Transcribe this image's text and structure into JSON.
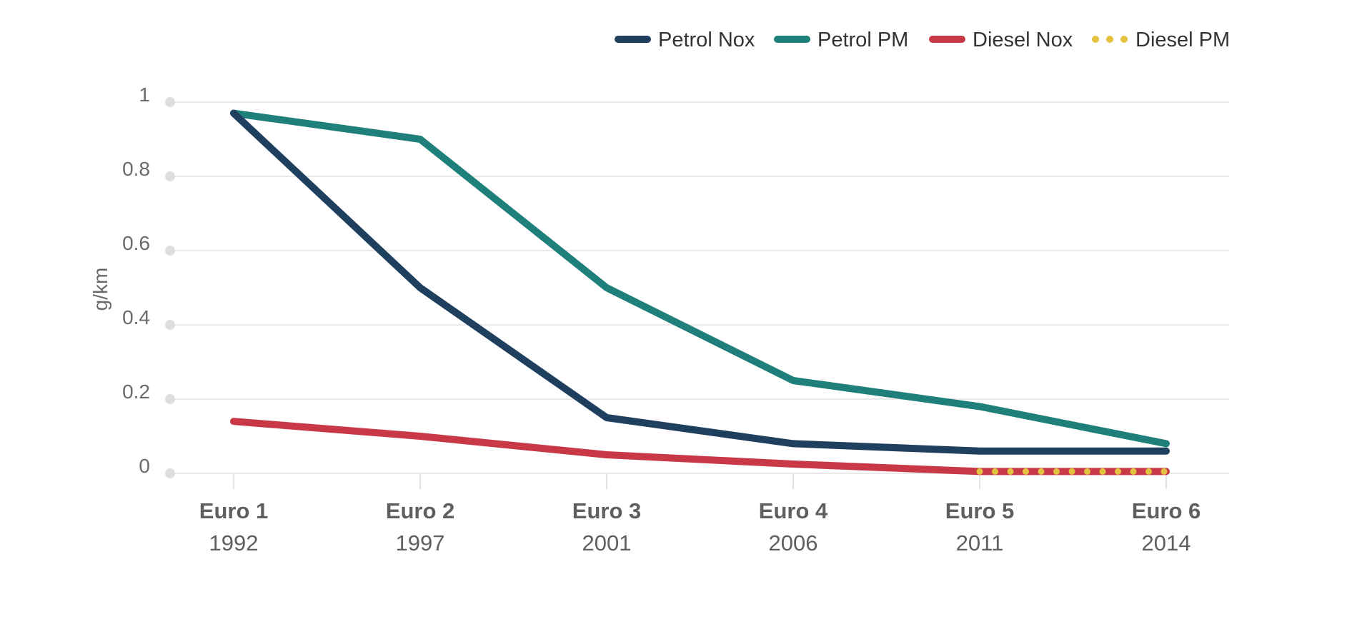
{
  "chart_data": {
    "type": "line",
    "ylabel": "g/km",
    "ylim": [
      0,
      1
    ],
    "yticks": [
      {
        "value": 0,
        "label": "0"
      },
      {
        "value": 0.2,
        "label": "0.2"
      },
      {
        "value": 0.4,
        "label": "0.4"
      },
      {
        "value": 0.6,
        "label": "0.6"
      },
      {
        "value": 0.8,
        "label": "0.8"
      },
      {
        "value": 1,
        "label": "1"
      }
    ],
    "categories": [
      {
        "name": "Euro 1",
        "year": "1992"
      },
      {
        "name": "Euro 2",
        "year": "1997"
      },
      {
        "name": "Euro 3",
        "year": "2001"
      },
      {
        "name": "Euro 4",
        "year": "2006"
      },
      {
        "name": "Euro 5",
        "year": "2011"
      },
      {
        "name": "Euro 6",
        "year": "2014"
      }
    ],
    "grid": true,
    "legend_position": "top-right",
    "series": [
      {
        "name": "Petrol Nox",
        "color": "#1f3f5f",
        "style": "solid",
        "values": [
          0.97,
          0.5,
          0.15,
          0.08,
          0.06,
          0.06
        ]
      },
      {
        "name": "Petrol PM",
        "color": "#1f7f7a",
        "style": "solid",
        "values": [
          0.97,
          0.9,
          0.5,
          0.25,
          0.18,
          0.08
        ]
      },
      {
        "name": "Diesel Nox",
        "color": "#c93847",
        "style": "solid",
        "values": [
          0.14,
          0.1,
          0.05,
          0.025,
          0.005,
          0.005
        ]
      },
      {
        "name": "Diesel PM",
        "color": "#e2c23f",
        "style": "dotted",
        "values": [
          null,
          null,
          null,
          null,
          0.005,
          0.005
        ]
      }
    ]
  }
}
